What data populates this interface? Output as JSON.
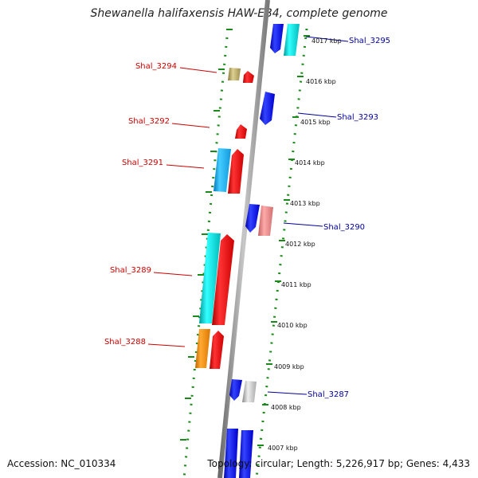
{
  "title": "Shewanella halifaxensis HAW-EB4, complete genome",
  "footer": {
    "accession": "Accession: NC_010334",
    "topology": "Topology: circular; Length: 5,226,917 bp; Genes: 4,433"
  },
  "scale": {
    "unit": "kbp",
    "ticks": [
      "4017 kbp",
      "4016 kbp",
      "4015 kbp",
      "4014 kbp",
      "4013 kbp",
      "4012 kbp",
      "4011 kbp",
      "4010 kbp",
      "4009 kbp",
      "4008 kbp",
      "4007 kbp"
    ]
  },
  "genes": {
    "left_labels": [
      "Shal_3294",
      "Shal_3292",
      "Shal_3291",
      "Shal_3289",
      "Shal_3288"
    ],
    "right_labels": [
      "Shal_3295",
      "Shal_3293",
      "Shal_3290",
      "Shal_3287"
    ]
  },
  "colors": {
    "left_label": "#cc0000",
    "right_label": "#000099",
    "backbone": "#8c8c8c",
    "track_dots": "#1a8a1a",
    "forward_gene": "#0000ee",
    "reverse_gene": "#ee0000",
    "cyan_gene": "#00cccc",
    "sky_gene": "#22aaee",
    "orange_gene": "#ee8800",
    "khaki_gene": "#b8a860",
    "pink_gene": "#e88888",
    "gray_gene": "#bbbbbb"
  }
}
